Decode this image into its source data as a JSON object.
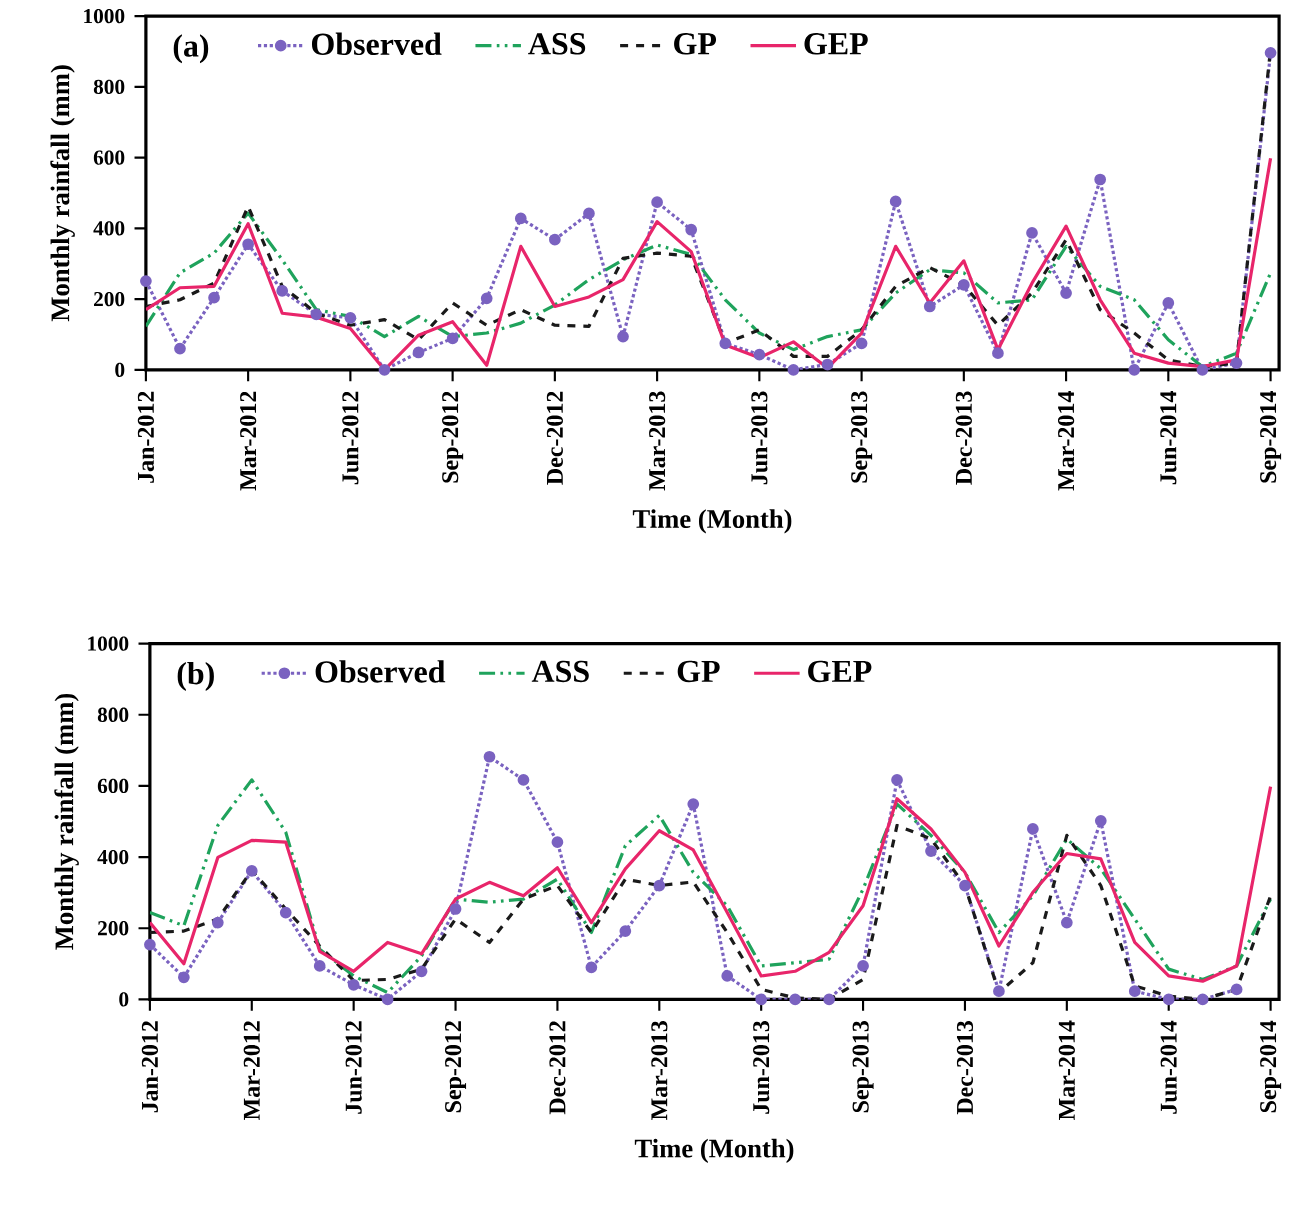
{
  "chart_data": [
    {
      "type": "line",
      "annotations": [
        "(a)"
      ],
      "xlabel": "Time (Month)",
      "ylabel": "Monthly rainfall (mm)",
      "categories": [
        "Jan-2012",
        null,
        null,
        "Mar-2012",
        null,
        null,
        "Jun-2012",
        null,
        null,
        "Sep-2012",
        null,
        null,
        "Dec-2012",
        null,
        null,
        "Mar-2013",
        null,
        null,
        "Jun-2013",
        null,
        null,
        "Sep-2013",
        null,
        null,
        "Dec-2013",
        null,
        null,
        "Mar-2014",
        null,
        null,
        "Jun-2014",
        null,
        null,
        "Sep-2014"
      ],
      "ylim": [
        0,
        1000
      ],
      "yticks": [
        0,
        200,
        400,
        600,
        800,
        1000
      ],
      "legend": "top",
      "grid": false,
      "series": [
        {
          "name": "Observed",
          "color": "#7a62c0",
          "marker": "circle",
          "line_style": "dotted",
          "values": [
            251,
            60,
            204,
            355,
            223,
            157,
            147,
            0,
            49,
            89,
            202,
            428,
            368,
            442,
            94,
            474,
            396,
            75,
            43,
            0,
            15,
            75,
            476,
            179,
            240,
            47,
            387,
            217,
            538,
            0,
            189,
            0,
            19,
            896
          ]
        },
        {
          "name": "ASS",
          "color": "#1fa35c",
          "marker": "none",
          "line_style": "dashdot",
          "values": [
            123,
            274,
            330,
            443,
            311,
            170,
            151,
            94,
            151,
            94,
            104,
            132,
            183,
            255,
            311,
            353,
            326,
            198,
            104,
            57,
            94,
            113,
            217,
            283,
            274,
            189,
            198,
            349,
            236,
            198,
            85,
            9,
            47,
            274
          ]
        },
        {
          "name": "GP",
          "color": "#1a1a1a",
          "marker": "none",
          "line_style": "dashed",
          "values": [
            179,
            198,
            245,
            462,
            236,
            160,
            126,
            142,
            85,
            189,
            126,
            170,
            126,
            123,
            315,
            330,
            321,
            75,
            113,
            38,
            38,
            113,
            236,
            289,
            240,
            126,
            217,
            368,
            170,
            104,
            28,
            9,
            19,
            906
          ]
        },
        {
          "name": "GEP",
          "color": "#e8256a",
          "marker": "none",
          "line_style": "solid",
          "values": [
            170,
            232,
            236,
            413,
            160,
            149,
            117,
            0,
            98,
            136,
            13,
            349,
            179,
            206,
            255,
            419,
            334,
            70,
            34,
            79,
            5,
            104,
            349,
            189,
            308,
            57,
            245,
            406,
            198,
            47,
            19,
            9,
            28,
            598
          ]
        }
      ]
    },
    {
      "type": "line",
      "annotations": [
        "(b)"
      ],
      "xlabel": "Time (Month)",
      "ylabel": "Monthly rainfall (mm)",
      "categories": [
        "Jan-2012",
        null,
        null,
        "Mar-2012",
        null,
        null,
        "Jun-2012",
        null,
        null,
        "Sep-2012",
        null,
        null,
        "Dec-2012",
        null,
        null,
        "Mar-2013",
        null,
        null,
        "Jun-2013",
        null,
        null,
        "Sep-2013",
        null,
        null,
        "Dec-2013",
        null,
        null,
        "Mar-2014",
        null,
        null,
        "Jun-2014",
        null,
        null,
        "Sep-2014"
      ],
      "ylim": [
        0,
        1000
      ],
      "yticks": [
        0,
        200,
        400,
        600,
        800,
        1000
      ],
      "legend": "top",
      "grid": false,
      "series": [
        {
          "name": "Observed",
          "color": "#7a62c0",
          "marker": "circle",
          "line_style": "dotted",
          "values": [
            154,
            62,
            216,
            361,
            244,
            94,
            41,
            0,
            79,
            254,
            682,
            617,
            442,
            90,
            192,
            320,
            549,
            66,
            0,
            0,
            0,
            94,
            617,
            417,
            320,
            23,
            479,
            216,
            502,
            23,
            0,
            0,
            28,
            null
          ]
        },
        {
          "name": "ASS",
          "color": "#1fa35c",
          "marker": "none",
          "line_style": "dashdot",
          "values": [
            244,
            207,
            489,
            617,
            470,
            141,
            66,
            19,
            122,
            282,
            273,
            282,
            338,
            188,
            432,
            517,
            357,
            263,
            94,
            103,
            113,
            310,
            549,
            461,
            357,
            188,
            291,
            451,
            367,
            226,
            85,
            56,
            94,
            282
          ]
        },
        {
          "name": "GP",
          "color": "#1a1a1a",
          "marker": "none",
          "line_style": "dashed",
          "values": [
            188,
            192,
            226,
            363,
            254,
            150,
            53,
            56,
            85,
            226,
            160,
            282,
            320,
            188,
            338,
            320,
            330,
            188,
            28,
            4,
            0,
            56,
            489,
            451,
            320,
            19,
            103,
            461,
            320,
            38,
            9,
            0,
            28,
            291
          ]
        },
        {
          "name": "GEP",
          "color": "#e8256a",
          "marker": "none",
          "line_style": "solid",
          "values": [
            216,
            100,
            399,
            447,
            442,
            135,
            79,
            160,
            128,
            282,
            329,
            291,
            370,
            216,
            367,
            474,
            420,
            244,
            66,
            79,
            132,
            263,
            564,
            479,
            357,
            150,
            301,
            410,
            395,
            160,
            66,
            51,
            94,
            598
          ]
        }
      ]
    }
  ]
}
